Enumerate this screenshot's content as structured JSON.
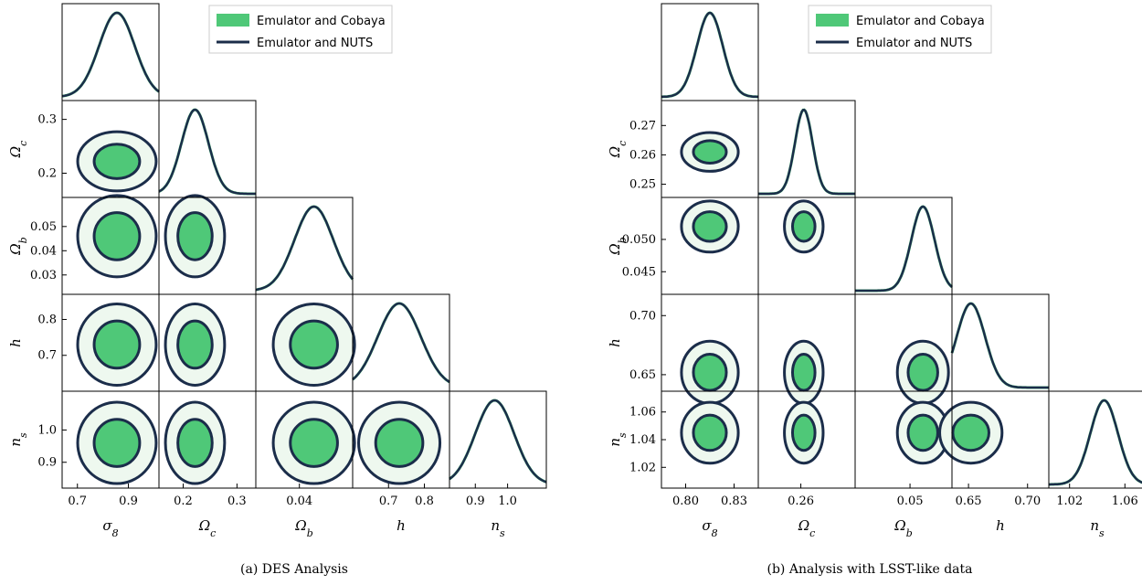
{
  "colors": {
    "cobaya_fill": "#4fc878",
    "cobaya_light": "#eef8ef",
    "nuts_line": "#1b2d4a"
  },
  "chart_data": [
    {
      "type": "corner",
      "caption": "(a) DES Analysis",
      "legend": [
        "Emulator and Cobaya",
        "Emulator and NUTS"
      ],
      "params": [
        {
          "label": "σ8",
          "sub": "8",
          "base": "σ",
          "range": [
            0.64,
            1.02
          ],
          "ticks": [
            0.7,
            0.9
          ],
          "tick_labels": [
            "0.7",
            "0.9"
          ],
          "mean": 0.855,
          "sigma": 0.07
        },
        {
          "label": "Ωc",
          "sub": "c",
          "base": "Ω",
          "range": [
            0.155,
            0.335
          ],
          "ticks": [
            0.2,
            0.3
          ],
          "tick_labels": [
            "0.2",
            "0.3"
          ],
          "mean": 0.222,
          "sigma": 0.025
        },
        {
          "label": "Ωb",
          "sub": "b",
          "base": "Ω",
          "range": [
            0.022,
            0.062
          ],
          "ticks": [
            0.03,
            0.04,
            0.05
          ],
          "tick_labels": [
            "0.03",
            "0.04",
            "0.05"
          ],
          "mean": 0.046,
          "sigma": 0.008
        },
        {
          "label": "h",
          "sub": "",
          "base": "h",
          "range": [
            0.6,
            0.87
          ],
          "ticks": [
            0.7,
            0.8
          ],
          "tick_labels": [
            "0.7",
            "0.8"
          ],
          "mean": 0.73,
          "sigma": 0.06
        },
        {
          "label": "ns",
          "sub": "s",
          "base": "n",
          "range": [
            0.82,
            1.12
          ],
          "ticks": [
            0.9,
            1.0
          ],
          "tick_labels": [
            "0.9",
            "1.0"
          ],
          "mean": 0.96,
          "sigma": 0.06
        }
      ],
      "x_tick_params": [
        {
          "ticks": [
            0.7,
            0.9
          ],
          "tick_labels": [
            "0.7",
            "0.9"
          ]
        },
        {
          "ticks": [
            0.2,
            0.3
          ],
          "tick_labels": [
            "0.2",
            "0.3"
          ]
        },
        {
          "ticks": [
            0.04
          ],
          "tick_labels": [
            "0.04"
          ]
        },
        {
          "ticks": [
            0.7,
            0.8
          ],
          "tick_labels": [
            "0.7",
            "0.8"
          ]
        },
        {
          "ticks": [
            0.9,
            1.0
          ],
          "tick_labels": [
            "0.9",
            "1.0"
          ]
        }
      ]
    },
    {
      "type": "corner",
      "caption": "(b) Analysis with LSST-like data",
      "legend": [
        "Emulator and Cobaya",
        "Emulator and NUTS"
      ],
      "params": [
        {
          "label": "σ8",
          "sub": "8",
          "base": "σ",
          "range": [
            0.785,
            0.845
          ],
          "ticks": [
            0.8,
            0.83
          ],
          "tick_labels": [
            "0.80",
            "0.83"
          ],
          "mean": 0.815,
          "sigma": 0.008
        },
        {
          "label": "Ωc",
          "sub": "c",
          "base": "Ω",
          "range": [
            0.2455,
            0.2785
          ],
          "ticks": [
            0.25,
            0.26,
            0.27
          ],
          "tick_labels": [
            "0.25",
            "0.26",
            "0.27"
          ],
          "mean": 0.261,
          "sigma": 0.003
        },
        {
          "label": "Ωb",
          "sub": "b",
          "base": "Ω",
          "range": [
            0.0415,
            0.0565
          ],
          "ticks": [
            0.045,
            0.05
          ],
          "tick_labels": [
            "0.045",
            "0.050"
          ],
          "mean": 0.052,
          "sigma": 0.0018
        },
        {
          "label": "h",
          "sub": "",
          "base": "h",
          "range": [
            0.636,
            0.718
          ],
          "ticks": [
            0.65,
            0.7
          ],
          "tick_labels": [
            "0.65",
            "0.70"
          ],
          "mean": 0.652,
          "sigma": 0.012
        },
        {
          "label": "ns",
          "sub": "s",
          "base": "n",
          "range": [
            1.005,
            1.075
          ],
          "ticks": [
            1.02,
            1.04,
            1.06
          ],
          "tick_labels": [
            "1.02",
            "1.04",
            "1.06"
          ],
          "mean": 1.045,
          "sigma": 0.01
        }
      ],
      "x_tick_params": [
        {
          "ticks": [
            0.8,
            0.83
          ],
          "tick_labels": [
            "0.80",
            "0.83"
          ]
        },
        {
          "ticks": [
            0.26
          ],
          "tick_labels": [
            "0.26"
          ]
        },
        {
          "ticks": [
            0.05
          ],
          "tick_labels": [
            "0.05"
          ]
        },
        {
          "ticks": [
            0.65,
            0.7
          ],
          "tick_labels": [
            "0.65",
            "0.70"
          ]
        },
        {
          "ticks": [
            1.02,
            1.06
          ],
          "tick_labels": [
            "1.02",
            "1.06"
          ]
        }
      ]
    }
  ]
}
